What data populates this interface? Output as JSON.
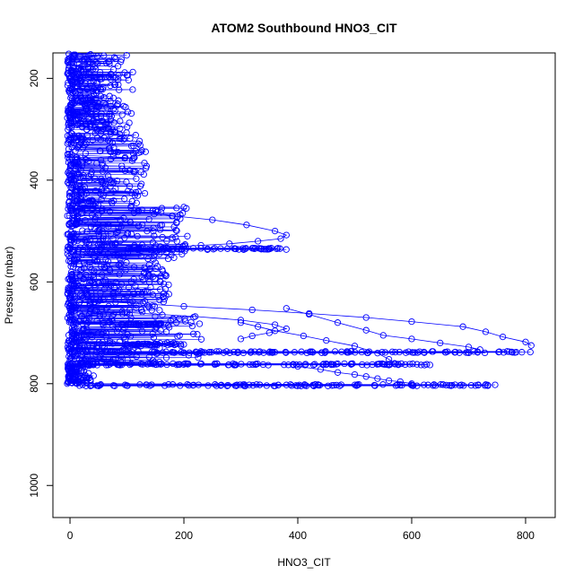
{
  "chart_data": {
    "type": "scatter",
    "title": "ATOM2 Southbound HNO3_CIT",
    "xlabel": "HNO3_CIT",
    "ylabel": "Pressure (mbar)",
    "xlim": [
      -30,
      852
    ],
    "ylim": [
      1063,
      150
    ],
    "y_axis_reversed": true,
    "x_ticks": [
      0,
      200,
      400,
      600,
      800
    ],
    "y_ticks": [
      200,
      400,
      600,
      800,
      1000
    ],
    "marker": "open-circle",
    "color": "#0000ff",
    "connected": true,
    "bands": [
      {
        "p_min": 150,
        "p_max": 300,
        "x_min": 0,
        "x_max": 110,
        "n": 320
      },
      {
        "p_min": 300,
        "p_max": 450,
        "x_min": 0,
        "x_max": 140,
        "n": 260
      },
      {
        "p_min": 450,
        "p_max": 560,
        "x_min": 0,
        "x_max": 210,
        "n": 240
      },
      {
        "p_min": 560,
        "p_max": 660,
        "x_min": 0,
        "x_max": 180,
        "n": 230
      },
      {
        "p_min": 660,
        "p_max": 760,
        "x_min": 0,
        "x_max": 230,
        "n": 220
      },
      {
        "p_min": 760,
        "p_max": 800,
        "x_min": 0,
        "x_max": 40,
        "n": 90
      }
    ],
    "layers": [
      {
        "pressure": 535,
        "x_min": 100,
        "x_max": 380,
        "n": 60
      },
      {
        "pressure": 683,
        "x_min": 90,
        "x_max": 160,
        "n": 30
      },
      {
        "pressure": 723,
        "x_min": 100,
        "x_max": 200,
        "n": 35
      },
      {
        "pressure": 738,
        "x_min": 0,
        "x_max": 810,
        "n": 130
      },
      {
        "pressure": 762,
        "x_min": 0,
        "x_max": 640,
        "n": 120
      },
      {
        "pressure": 803,
        "x_min": 10,
        "x_max": 760,
        "n": 120
      }
    ],
    "tails": [
      {
        "x": [
          40,
          120,
          180,
          250,
          310,
          360,
          380,
          370,
          330,
          280,
          230,
          190,
          150,
          120
        ],
        "y": [
          455,
          462,
          470,
          478,
          488,
          500,
          508,
          515,
          520,
          525,
          528,
          531,
          534,
          537
        ]
      },
      {
        "x": [
          80,
          200,
          320,
          420,
          520,
          600,
          690,
          730,
          760,
          800,
          810
        ],
        "y": [
          640,
          648,
          655,
          662,
          670,
          678,
          688,
          698,
          708,
          718,
          725
        ]
      },
      {
        "x": [
          100,
          220,
          300,
          360,
          380,
          350,
          320,
          300
        ],
        "y": [
          660,
          668,
          675,
          684,
          692,
          700,
          706,
          712
        ]
      },
      {
        "x": [
          380,
          420,
          470,
          520,
          550,
          600,
          650,
          700,
          720
        ],
        "y": [
          652,
          664,
          680,
          695,
          705,
          712,
          720,
          728,
          733
        ]
      },
      {
        "x": [
          300,
          330,
          360,
          410,
          450,
          500,
          540,
          560,
          570
        ],
        "y": [
          680,
          688,
          696,
          706,
          715,
          726,
          740,
          752,
          760
        ]
      },
      {
        "x": [
          400,
          440,
          470,
          500,
          520,
          540,
          560,
          580,
          600
        ],
        "y": [
          766,
          772,
          778,
          782,
          786,
          790,
          794,
          796,
          800
        ]
      }
    ]
  }
}
